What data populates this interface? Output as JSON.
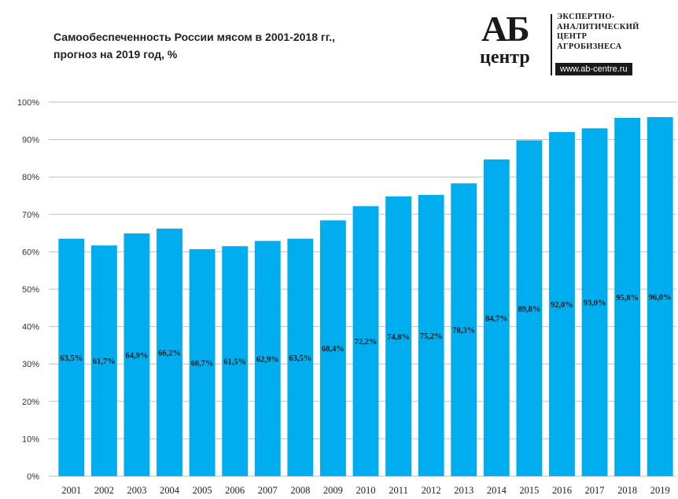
{
  "header": {
    "title_line1": "Самообеспеченность  России мясом в 2001-2018 гг.,",
    "title_line2": "прогноз  на 2019 год, %"
  },
  "logo": {
    "mark_top": "АБ",
    "mark_bottom": "центр",
    "text_lines": [
      "ЭКСПЕРТНО-",
      "АНАЛИТИЧЕСКИЙ",
      "ЦЕНТР",
      "АГРОБИЗНЕСА"
    ],
    "url": "www.ab-centre.ru"
  },
  "chart_data": {
    "type": "bar",
    "title": "Самообеспеченность  России мясом в 2001-2018 гг., прогноз  на 2019 год, %",
    "categories": [
      "2001",
      "2002",
      "2003",
      "2004",
      "2005",
      "2006",
      "2007",
      "2008",
      "2009",
      "2010",
      "2011",
      "2012",
      "2013",
      "2014",
      "2015",
      "2016",
      "2017",
      "2018",
      "2019"
    ],
    "values": [
      63.5,
      61.7,
      64.9,
      66.2,
      60.7,
      61.5,
      62.9,
      63.5,
      68.4,
      72.2,
      74.8,
      75.2,
      78.3,
      84.7,
      89.8,
      92.0,
      93.0,
      95.8,
      96.0
    ],
    "data_labels": [
      "63,5%",
      "61,7%",
      "64,9%",
      "66,2%",
      "60,7%",
      "61,5%",
      "62,9%",
      "63,5%",
      "68,4%",
      "72,2%",
      "74,8%",
      "75,2%",
      "78,3%",
      "84,7%",
      "89,8%",
      "92,0%",
      "93,0%",
      "95,8%",
      "96,0%"
    ],
    "y_ticks": [
      "0%",
      "10%",
      "20%",
      "30%",
      "40%",
      "50%",
      "60%",
      "70%",
      "80%",
      "90%",
      "100%"
    ],
    "ylim": [
      0,
      100
    ],
    "xlabel": "",
    "ylabel": "",
    "grid": true,
    "legend": "none",
    "bar_color": "#00aeef",
    "grid_color": "#bfbfbf"
  }
}
